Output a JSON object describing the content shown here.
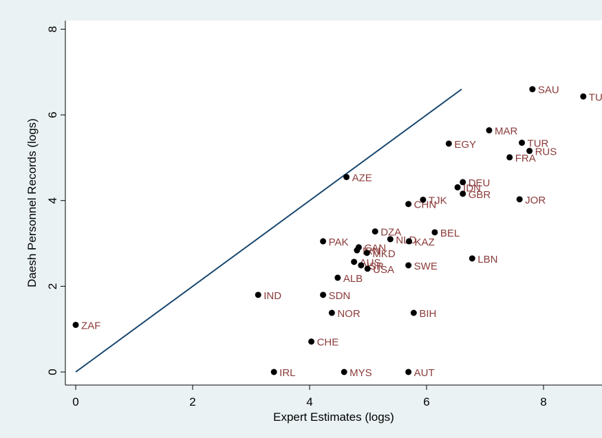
{
  "chart_data": {
    "type": "scatter",
    "x_label": "Expert Estimates (logs)",
    "y_label": "Daesh Personnel Records (logs)",
    "labels": [
      "ZAF",
      "IND",
      "IRL",
      "CHE",
      "SDN",
      "NOR",
      "MYS",
      "ALB",
      "PAK",
      "AZE",
      "DZA",
      "NLD",
      "KAZ",
      "CAN",
      "IRN",
      "MKD",
      "AUS",
      "ISR",
      "USA",
      "SWE",
      "CHN",
      "TJK",
      "BEL",
      "LBN",
      "BIH",
      "AUT",
      "EGY",
      "IDN",
      "DEU",
      "GBR",
      "JOR",
      "FRA",
      "MAR",
      "TUR",
      "RUS",
      "SAU",
      "TUN"
    ],
    "x": [
      0,
      3.12,
      3.39,
      4.03,
      4.23,
      4.38,
      4.59,
      4.48,
      4.23,
      4.63,
      5.12,
      5.38,
      5.7,
      4.84,
      4.81,
      4.98,
      4.76,
      4.88,
      4.99,
      5.69,
      5.69,
      5.94,
      6.14,
      6.78,
      5.78,
      5.69,
      6.38,
      6.53,
      6.62,
      6.62,
      7.59,
      7.42,
      7.07,
      7.63,
      7.76,
      7.81,
      8.68
    ],
    "values": [
      1.1,
      1.8,
      0,
      0.71,
      1.8,
      1.38,
      0,
      2.2,
      3.05,
      4.55,
      3.28,
      3.1,
      3.05,
      2.91,
      2.84,
      2.78,
      2.57,
      2.49,
      2.41,
      2.49,
      3.92,
      4.02,
      3.26,
      2.65,
      1.38,
      0,
      5.33,
      4.31,
      4.43,
      4.16,
      4.03,
      5.01,
      5.64,
      5.35,
      5.16,
      6.6,
      6.43
    ],
    "color": "#000000",
    "label_color": "#8b3a3a",
    "fit_line": {
      "x": [
        0,
        6.6
      ],
      "y": [
        0,
        6.6
      ],
      "color": "#1a476f"
    },
    "xlim": [
      -0.177,
      9.0
    ],
    "ylim": [
      -0.305,
      8.2
    ],
    "xticks": [
      0,
      2,
      4,
      6,
      8
    ],
    "yticks": [
      0,
      2,
      4,
      6,
      8
    ],
    "grid": false
  }
}
